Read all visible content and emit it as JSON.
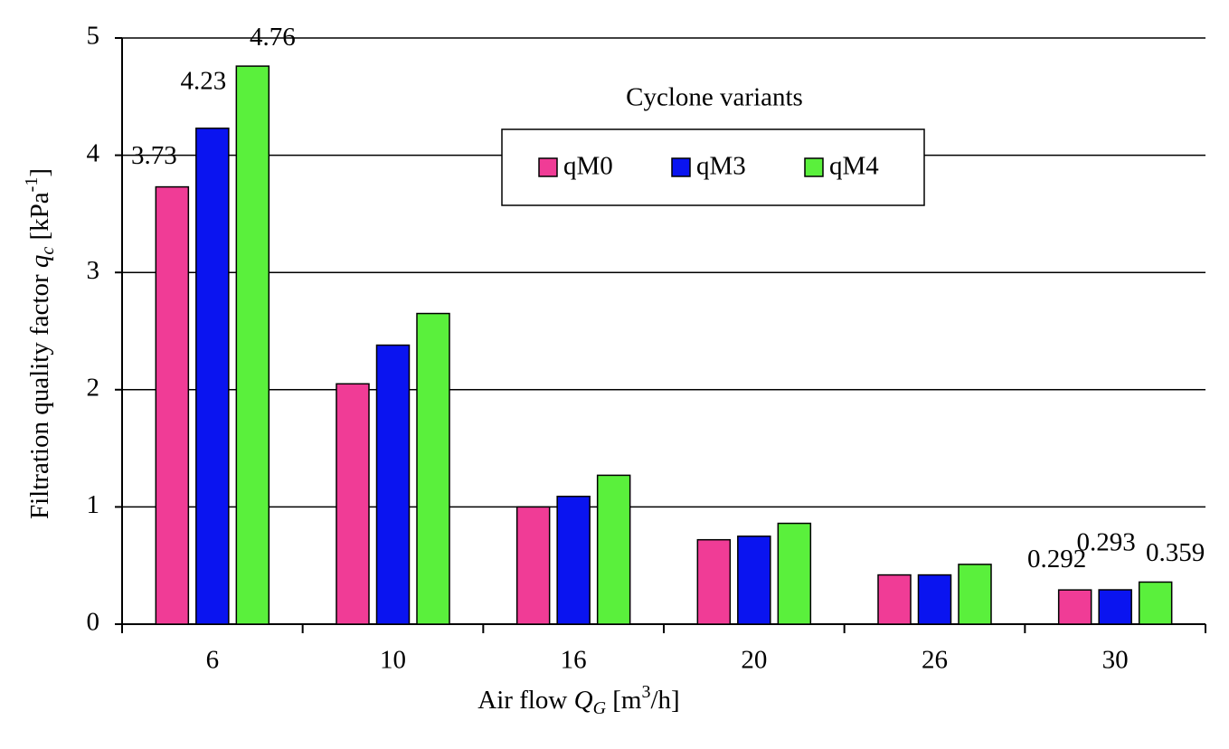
{
  "chart_data": {
    "type": "bar",
    "y_label": [
      "Filtration quality factor ",
      "q",
      "c",
      " [kPa",
      "-1",
      "]"
    ],
    "x_label": [
      "Air flow ",
      "Q",
      "G",
      " [m",
      "3",
      "/h]"
    ],
    "legend_title": "Cyclone variants",
    "categories": [
      "6",
      "10",
      "16",
      "20",
      "26",
      "30"
    ],
    "series": [
      {
        "name": "qM0",
        "color": "#f03c96",
        "values": [
          3.73,
          2.05,
          1.0,
          0.72,
          0.42,
          0.292
        ],
        "value_labels": [
          "3.73",
          null,
          null,
          null,
          null,
          "0.292"
        ]
      },
      {
        "name": "qM3",
        "color": "#0a14f0",
        "values": [
          4.23,
          2.38,
          1.09,
          0.75,
          0.42,
          0.293
        ],
        "value_labels": [
          "4.23",
          null,
          null,
          null,
          null,
          "0.293"
        ]
      },
      {
        "name": "qM4",
        "color": "#5af03c",
        "values": [
          4.76,
          2.65,
          1.27,
          0.86,
          0.51,
          0.359
        ],
        "value_labels": [
          "4.76",
          null,
          null,
          null,
          null,
          "0.359"
        ]
      }
    ],
    "ylim": [
      0,
      5
    ],
    "yticks": [
      0,
      1,
      2,
      3,
      4,
      5
    ],
    "grid": true,
    "legend": "top-center"
  }
}
